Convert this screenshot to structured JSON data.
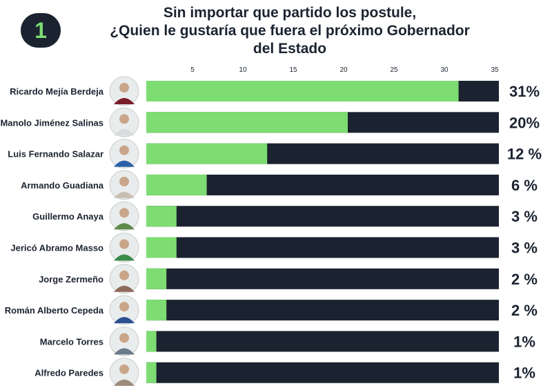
{
  "badge_number": "1",
  "chart_data": {
    "type": "bar",
    "orientation": "horizontal",
    "title_lines": [
      "Sin importar que partido los postule,",
      "¿Quien le gustaría que fuera el próximo Gobernador",
      "del Estado"
    ],
    "categories": [
      "Ricardo Mejía Berdeja",
      "Manolo Jiménez Salinas",
      "Luis Fernando Salazar",
      "Armando Guadiana",
      "Guillermo Anaya",
      "Jericó Abramo Masso",
      "Jorge Zermeño",
      "Román Alberto Cepeda",
      "Marcelo Torres",
      "Alfredo Paredes"
    ],
    "values": [
      31,
      20,
      12,
      6,
      3,
      3,
      2,
      2,
      1,
      1
    ],
    "value_labels": [
      "31%",
      "20%",
      "12 %",
      "6 %",
      "3 %",
      "3 %",
      "2 %",
      "2 %",
      "1%",
      "1%"
    ],
    "x_ticks": [
      "5",
      "10",
      "15",
      "20",
      "25",
      "30",
      "35"
    ],
    "x_range": [
      0,
      35
    ],
    "colors": {
      "filled": "#7ddc72",
      "track": "#1b2330",
      "text": "#1b2330"
    },
    "avatar_colors": [
      "#7a1c2a",
      "#d9dbdc",
      "#2b5fa8",
      "#c7c0b2",
      "#5f8c4a",
      "#3c8c4a",
      "#8f6a5a",
      "#2b4f8f",
      "#6a7a8a",
      "#9c8a7a"
    ]
  }
}
